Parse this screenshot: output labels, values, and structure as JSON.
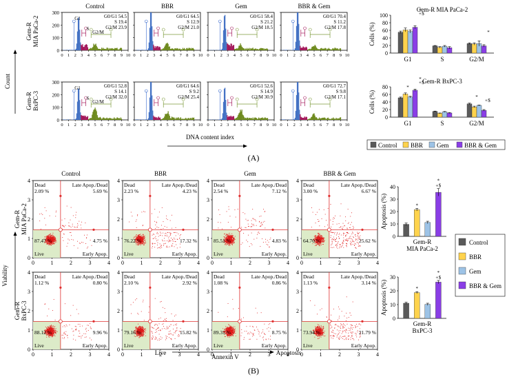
{
  "panelA": {
    "label": "(A)",
    "columns": [
      "Control",
      "BBR",
      "Gem",
      "BBR & Gem"
    ],
    "rows": [
      {
        "line1": "Gem-R",
        "line2": "MIA PaCa-2"
      },
      {
        "line1": "Gem-R",
        "line2": "BxPC-3"
      }
    ],
    "count_label": "Count",
    "xaxis_label": "DNA content index",
    "yticks": [
      "0",
      "100",
      "200",
      "300"
    ],
    "xticks": [
      "0",
      "1",
      "2",
      "3",
      "4",
      "5",
      "6",
      "7",
      "8",
      "9",
      "10"
    ],
    "gate_labels": {
      "g1": "G1",
      "s": "S",
      "g2m": "G2/M"
    },
    "histograms": [
      [
        {
          "g1": "G0/G1 54.5",
          "s": "S 19.4",
          "g2m": "G2/M 23.9"
        },
        {
          "g1": "G0/G1 64.5",
          "s": "S 12.9",
          "g2m": "G2/M 21.0"
        },
        {
          "g1": "G0/G1 58.4",
          "s": "S 21.2",
          "g2m": "G2/M 18.5"
        },
        {
          "g1": "G0/G1 70.4",
          "s": "S 11.2",
          "g2m": "G2/M 17.8"
        }
      ],
      [
        {
          "g1": "G0/G1 52.8",
          "s": "S 14.1",
          "g2m": "G2/M 32.0"
        },
        {
          "g1": "G0/G1 64.6",
          "s": "S 9.2",
          "g2m": "G2/M 25.4"
        },
        {
          "g1": "G0/G1 52.6",
          "s": "S 14.9",
          "g2m": "G2/M 30.9"
        },
        {
          "g1": "G0/G1 72.7",
          "s": "S 9.8",
          "g2m": "G2/M 17.1"
        }
      ]
    ],
    "colors": {
      "g1": "#4472c4",
      "s": "#a4195b",
      "g2m": "#6e8a1e",
      "gate": "#7d9a3a"
    }
  },
  "panelB": {
    "label": "(B)",
    "columns": [
      "Control",
      "BBR",
      "Gem",
      "BBR & Gem"
    ],
    "viability_label": "Viability",
    "x_left": "Live",
    "x_mid": "Annexin V",
    "x_right": "Apoptosis",
    "ticks": [
      "0",
      "1",
      "2",
      "3",
      "4"
    ],
    "quadrant_labels": {
      "dead": "Dead",
      "late": "Late Apop./Dead",
      "live": "Live",
      "early": "Early Apop."
    },
    "quadrants": [
      [
        {
          "dead": "2.09 %",
          "late": "5.69 %",
          "live": "87.47 %",
          "early": "4.75 %"
        },
        {
          "dead": "2.23 %",
          "late": "4.23 %",
          "live": "76.22 %",
          "early": "17.32 %"
        },
        {
          "dead": "2.54 %",
          "late": "7.12 %",
          "live": "85.51 %",
          "early": "4.83 %"
        },
        {
          "dead": "3.00 %",
          "late": "6.67 %",
          "live": "64.70 %",
          "early": "25.62 %"
        }
      ],
      [
        {
          "dead": "1.12 %",
          "late": "0.80 %",
          "live": "88.12 %",
          "early": "9.96 %"
        },
        {
          "dead": "2.10 %",
          "late": "2.92 %",
          "live": "79.16 %",
          "early": "15.82 %"
        },
        {
          "dead": "1.08 %",
          "late": "0.86 %",
          "live": "89.31 %",
          "early": "8.75 %"
        },
        {
          "dead": "1.13 %",
          "late": "3.14 %",
          "live": "73.94 %",
          "early": "21.79 %"
        }
      ]
    ]
  },
  "chart_data": [
    {
      "type": "bar",
      "title": "Gem-R MIA PaCa-2",
      "ylabel": "Cells (%)",
      "categories": [
        "G1",
        "S",
        "G2/M"
      ],
      "ylim": [
        0,
        100
      ],
      "yticks": [
        "0",
        "20",
        "40",
        "60",
        "80",
        "100"
      ],
      "series": [
        {
          "name": "Control",
          "values": [
            55,
            19,
            25
          ],
          "errors": [
            3,
            1,
            2
          ]
        },
        {
          "name": "BBR",
          "values": [
            61,
            15,
            24
          ],
          "errors": [
            5,
            2,
            3
          ]
        },
        {
          "name": "Gem",
          "values": [
            57,
            18,
            25
          ],
          "errors": [
            4,
            2,
            7
          ]
        },
        {
          "name": "BBR & Gem",
          "values": [
            68,
            14,
            19
          ],
          "errors": [
            4,
            3,
            3
          ]
        }
      ],
      "annotations": [
        "*",
        "*",
        "*",
        "*",
        "+",
        "$"
      ]
    },
    {
      "type": "bar",
      "title": "Gem-R BxPC-3",
      "ylabel": "Cells (%)",
      "categories": [
        "G1",
        "S",
        "G2/M"
      ],
      "ylim": [
        0,
        80
      ],
      "yticks": [
        "0",
        "20",
        "40",
        "60",
        "80"
      ],
      "series": [
        {
          "name": "Control",
          "values": [
            51,
            15,
            35
          ],
          "errors": [
            2,
            1,
            2
          ]
        },
        {
          "name": "BBR",
          "values": [
            61,
            10,
            27
          ],
          "errors": [
            3,
            1,
            2
          ]
        },
        {
          "name": "Gem",
          "values": [
            53,
            14,
            31
          ],
          "errors": [
            2,
            1,
            1
          ]
        },
        {
          "name": "BBR & Gem",
          "values": [
            71,
            11,
            18
          ],
          "errors": [
            3,
            1,
            2
          ]
        }
      ],
      "annotations": [
        "*",
        "*",
        "+",
        "$",
        "*",
        "*",
        "+",
        "$"
      ]
    },
    {
      "type": "bar",
      "title": "Gem-R MIA PaCa-2",
      "ylabel": "Apoptosis (%)",
      "categories": [
        "Control",
        "BBR",
        "Gem",
        "BBR & Gem"
      ],
      "ylim": [
        0,
        40
      ],
      "yticks": [
        "0",
        "10",
        "20",
        "30",
        "40"
      ],
      "values": [
        9.7,
        21.5,
        11.2,
        35.5
      ],
      "errors": [
        1.0,
        1.0,
        1.0,
        3.0
      ],
      "annotations": [
        "*",
        "*",
        "+",
        "$"
      ]
    },
    {
      "type": "bar",
      "title": "Gem-R BxPC-3",
      "ylabel": "Apoptosis (%)",
      "categories": [
        "Control",
        "BBR",
        "Gem",
        "BBR & Gem"
      ],
      "ylim": [
        0,
        30
      ],
      "yticks": [
        "0",
        "10",
        "20",
        "30"
      ],
      "values": [
        11.0,
        18.7,
        10.2,
        26.3
      ],
      "errors": [
        0.7,
        0.7,
        0.8,
        1.2
      ],
      "annotations": [
        "*",
        "*",
        "+",
        "$"
      ]
    }
  ],
  "legends": {
    "cycle": [
      "Control",
      "BBR",
      "Gem",
      "BBR & Gem"
    ],
    "apoptosis": [
      "Control",
      "BBR",
      "Gem",
      "BBR & Gem"
    ]
  },
  "series_colors": {
    "Control": "#5a5a5a",
    "BBR": "#ffd34d",
    "Gem": "#9dc3e6",
    "BBR & Gem": "#8a3ee6"
  }
}
